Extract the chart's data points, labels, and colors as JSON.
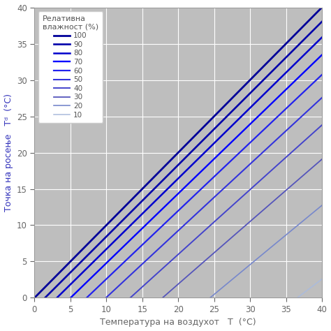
{
  "title_x": "Температура на воздухот   T  (°C)",
  "title_y": "Точка на росење   Tᵈ  (°C)",
  "legend_title": "Релативна\nвлажност (%)",
  "rh_values": [
    100,
    90,
    80,
    70,
    60,
    50,
    40,
    30,
    20,
    10
  ],
  "colors": {
    "100": "#000099",
    "90": "#0000AA",
    "80": "#0000CC",
    "70": "#0000FF",
    "60": "#2222EE",
    "50": "#3333DD",
    "40": "#4444CC",
    "30": "#5555BB",
    "20": "#7788CC",
    "10": "#AABBDD"
  },
  "linewidths": {
    "100": 2.0,
    "90": 1.9,
    "80": 1.8,
    "70": 1.7,
    "60": 1.6,
    "50": 1.5,
    "40": 1.4,
    "30": 1.3,
    "20": 1.2,
    "10": 1.1
  },
  "T_min": 0,
  "T_max": 40,
  "Td_min": 0,
  "Td_max": 40,
  "xticks": [
    0,
    5,
    10,
    15,
    20,
    25,
    30,
    35,
    40
  ],
  "yticks": [
    0,
    5,
    10,
    15,
    20,
    25,
    30,
    35,
    40
  ],
  "ax_bgcolor": "#BEBEBE",
  "grid_color": "#FFFFFF",
  "tick_color": "#666666",
  "label_color_x": "#666666",
  "label_color_y": "#3333BB",
  "fig_bgcolor": "none"
}
